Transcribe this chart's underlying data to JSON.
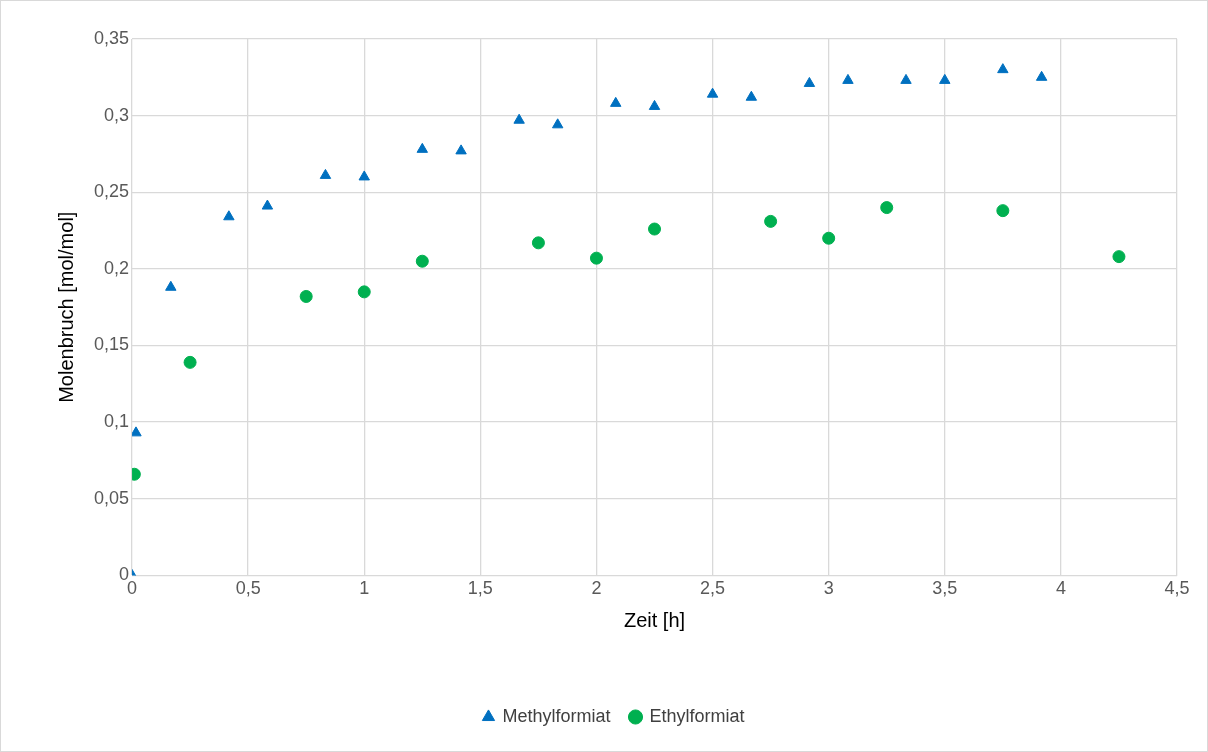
{
  "chart_data": {
    "type": "scatter",
    "xlabel": "Zeit [h]",
    "ylabel": "Molenbruch [mol/mol]",
    "xlim": [
      0,
      4.5
    ],
    "xticks": [
      0,
      {
        "value": 0.5,
        "label": "0,5"
      },
      1,
      {
        "value": 1.5,
        "label": "1,5"
      },
      2,
      {
        "value": 2.5,
        "label": "2,5"
      },
      3,
      {
        "value": 3.5,
        "label": "3,5"
      },
      4,
      {
        "value": 4.5,
        "label": "4,5"
      }
    ],
    "ylim": [
      0,
      0.35
    ],
    "yticks": [
      0,
      {
        "value": 0.05,
        "label": "0,05"
      },
      {
        "value": 0.1,
        "label": "0,1"
      },
      {
        "value": 0.15,
        "label": "0,15"
      },
      {
        "value": 0.2,
        "label": "0,2"
      },
      {
        "value": 0.25,
        "label": "0,25"
      },
      {
        "value": 0.3,
        "label": "0,3"
      },
      {
        "value": 0.35,
        "label": "0,35"
      }
    ],
    "grid": true,
    "legend": "bottom",
    "series": [
      {
        "name": "Methylformiat",
        "color": "#0070c0",
        "marker": "triangle",
        "x": [
          0,
          0.017,
          0.167,
          0.417,
          0.583,
          0.833,
          1.0,
          1.25,
          1.417,
          1.667,
          1.833,
          2.083,
          2.25,
          2.5,
          2.667,
          2.917,
          3.083,
          3.333,
          3.5,
          3.75,
          3.917
        ],
        "values": [
          0,
          0.093,
          0.188,
          0.234,
          0.241,
          0.261,
          0.26,
          0.278,
          0.277,
          0.297,
          0.294,
          0.308,
          0.306,
          0.314,
          0.312,
          0.321,
          0.323,
          0.323,
          0.323,
          0.33,
          0.325
        ]
      },
      {
        "name": "Ethylformiat",
        "color": "#00b050",
        "marker": "circle",
        "x": [
          0.01,
          0.25,
          0.75,
          1.0,
          1.25,
          1.75,
          2.0,
          2.25,
          2.75,
          3.0,
          3.25,
          3.75,
          4.25
        ],
        "values": [
          0.066,
          0.139,
          0.182,
          0.185,
          0.205,
          0.217,
          0.207,
          0.226,
          0.231,
          0.22,
          0.24,
          0.238,
          0.208
        ]
      }
    ]
  }
}
